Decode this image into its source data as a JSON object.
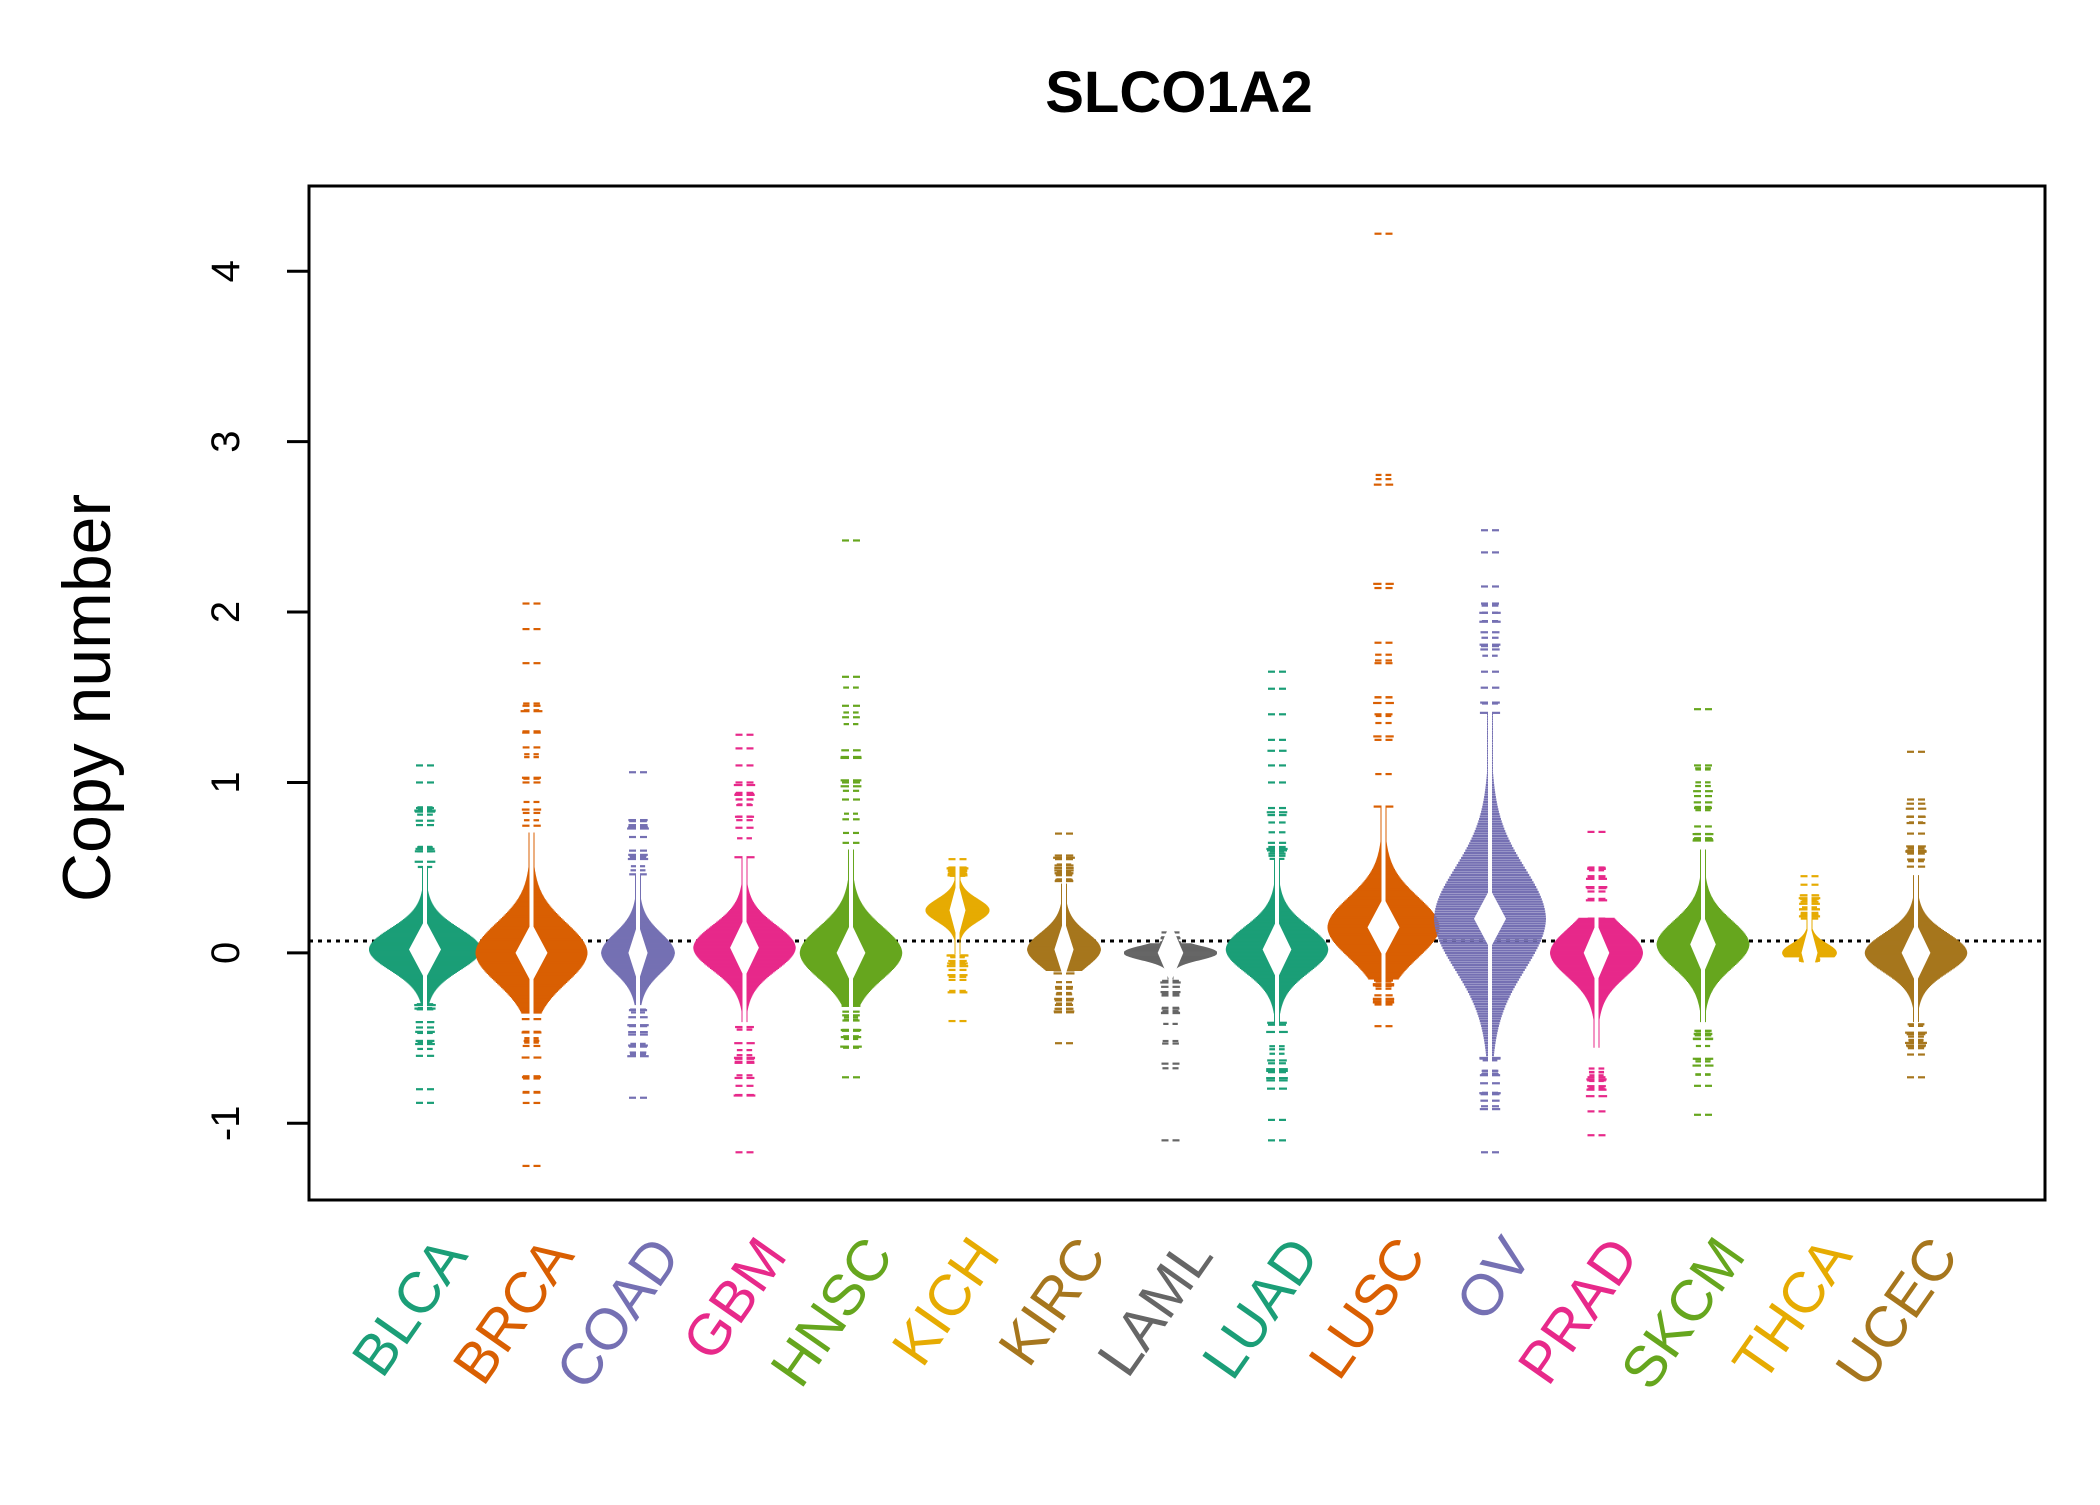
{
  "chart_data": {
    "type": "beeswarm",
    "title": "SLCO1A2",
    "xlabel": "",
    "ylabel": "Copy number",
    "ylim": [
      -1.45,
      4.5
    ],
    "yticks": [
      -1,
      0,
      1,
      2,
      3,
      4
    ],
    "ytick_labels": [
      "-1",
      "0",
      "1",
      "2",
      "3",
      "4"
    ],
    "reference_line": {
      "y": 0.07,
      "style": "dotted"
    },
    "grid": false,
    "legend": "none",
    "categories": [
      "BLCA",
      "BRCA",
      "COAD",
      "GBM",
      "HNSC",
      "KICH",
      "KIRC",
      "LAML",
      "LUAD",
      "LUSC",
      "OV",
      "PRAD",
      "SKCM",
      "THCA",
      "UCEC"
    ],
    "colors": [
      "#1b9e77",
      "#d95f02",
      "#7570b3",
      "#e7298a",
      "#66a61e",
      "#e6ab02",
      "#a6761d",
      "#666666",
      "#1b9e77",
      "#d95f02",
      "#7570b3",
      "#e7298a",
      "#66a61e",
      "#e6ab02",
      "#a6761d"
    ],
    "series": [
      {
        "category": "BLCA",
        "median": 0.02,
        "min": -0.88,
        "max": 1.1,
        "q1": -0.3,
        "q3": 0.5,
        "spread": 1.0,
        "outliers": [
          -0.88,
          -0.8,
          0.75,
          0.85,
          1.0,
          1.1
        ]
      },
      {
        "category": "BRCA",
        "median": 0.0,
        "min": -1.25,
        "max": 2.05,
        "q1": -0.35,
        "q3": 0.7,
        "spread": 1.0,
        "outliers": [
          -1.25,
          -0.82,
          1.0,
          1.3,
          1.45,
          1.7,
          1.9,
          2.05
        ]
      },
      {
        "category": "COAD",
        "median": 0.0,
        "min": -0.85,
        "max": 1.06,
        "q1": -0.3,
        "q3": 0.45,
        "spread": 0.6,
        "outliers": [
          -0.85,
          -0.55,
          0.6,
          0.68,
          1.06
        ]
      },
      {
        "category": "GBM",
        "median": 0.03,
        "min": -1.17,
        "max": 1.28,
        "q1": -0.4,
        "q3": 0.55,
        "spread": 0.9,
        "outliers": [
          -1.17,
          -0.78,
          0.9,
          1.0,
          1.1,
          1.2,
          1.28
        ]
      },
      {
        "category": "HNSC",
        "median": 0.0,
        "min": -0.73,
        "max": 2.42,
        "q1": -0.3,
        "q3": 0.6,
        "spread": 0.9,
        "outliers": [
          -0.73,
          0.9,
          1.0,
          1.45,
          1.62,
          2.42
        ]
      },
      {
        "category": "KICH",
        "median": 0.25,
        "min": -0.4,
        "max": 0.55,
        "q1": 0.0,
        "q3": 0.45,
        "spread": 0.5,
        "outliers": [
          -0.4,
          -0.1,
          0.55
        ]
      },
      {
        "category": "KIRC",
        "median": 0.02,
        "min": -0.53,
        "max": 0.7,
        "q1": -0.1,
        "q3": 0.4,
        "spread": 0.6,
        "outliers": [
          -0.53,
          -0.2,
          0.55,
          0.7
        ]
      },
      {
        "category": "LAML",
        "median": 0.0,
        "min": -1.1,
        "max": 0.12,
        "q1": -0.15,
        "q3": 0.05,
        "spread": 0.8,
        "outliers": [
          -1.1,
          -0.65,
          -0.35,
          -0.25,
          0.12
        ]
      },
      {
        "category": "LUAD",
        "median": 0.02,
        "min": -1.1,
        "max": 1.65,
        "q1": -0.4,
        "q3": 0.55,
        "spread": 0.9,
        "outliers": [
          -1.1,
          -0.98,
          -0.7,
          0.85,
          1.0,
          1.1,
          1.25,
          1.4,
          1.55,
          1.65
        ]
      },
      {
        "category": "LUSC",
        "median": 0.15,
        "min": -0.43,
        "max": 4.22,
        "q1": -0.15,
        "q3": 0.85,
        "spread": 1.0,
        "outliers": [
          -0.43,
          1.25,
          1.4,
          1.5,
          1.7,
          1.82,
          4.22
        ]
      },
      {
        "category": "OV",
        "median": 0.2,
        "min": -1.17,
        "max": 2.48,
        "q1": -0.6,
        "q3": 1.4,
        "spread": 1.0,
        "outliers": [
          -1.17,
          -0.9,
          1.65,
          1.8,
          2.05,
          2.15,
          2.35,
          2.48
        ]
      },
      {
        "category": "PRAD",
        "median": 0.0,
        "min": -1.07,
        "max": 0.71,
        "q1": -0.55,
        "q3": 0.2,
        "spread": 0.8,
        "outliers": [
          -1.07,
          -0.93,
          -0.8,
          0.45,
          0.5,
          0.71
        ]
      },
      {
        "category": "SKCM",
        "median": 0.05,
        "min": -0.95,
        "max": 1.43,
        "q1": -0.4,
        "q3": 0.6,
        "spread": 0.8,
        "outliers": [
          -0.95,
          -0.78,
          0.85,
          0.92,
          1.1,
          1.43
        ]
      },
      {
        "category": "THCA",
        "median": 0.0,
        "min": -0.08,
        "max": 0.45,
        "q1": -0.02,
        "q3": 0.2,
        "spread": 0.4,
        "outliers": [
          0.3,
          0.4,
          0.45
        ]
      },
      {
        "category": "UCEC",
        "median": 0.0,
        "min": -0.73,
        "max": 1.18,
        "q1": -0.4,
        "q3": 0.45,
        "spread": 0.9,
        "outliers": [
          -0.73,
          0.7,
          0.8,
          0.9,
          1.18
        ]
      }
    ]
  }
}
